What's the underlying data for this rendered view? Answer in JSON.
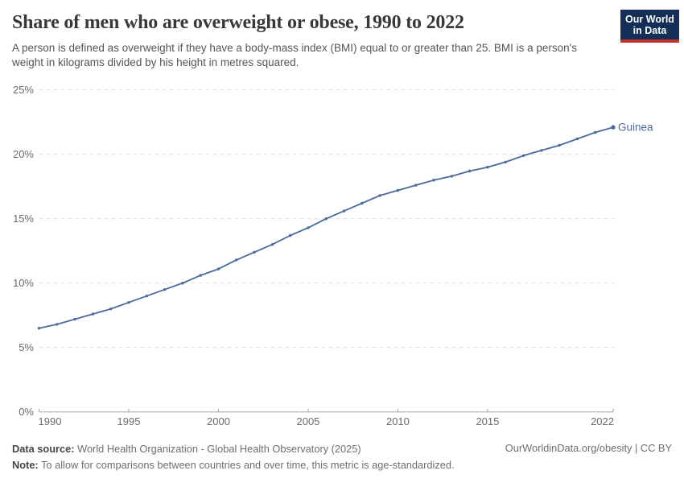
{
  "header": {
    "title": "Share of men who are overweight or obese, 1990 to 2022",
    "subtitle": "A person is defined as overweight if they have a body-mass index (BMI) equal to or greater than 25. BMI is a person's weight in kilograms divided by his height in metres squared.",
    "logo": {
      "line1": "Our World",
      "line2": "in Data",
      "bg_color": "#132e57",
      "accent_color": "#c4302e"
    }
  },
  "chart_data": {
    "type": "line",
    "title": "Share of men who are overweight or obese, 1990 to 2022",
    "xlabel": "",
    "ylabel": "",
    "unit": "%",
    "xlim": [
      1990,
      2022
    ],
    "ylim": [
      0,
      25
    ],
    "grid": "horizontal-dashed",
    "legend_position": "end-of-line-label",
    "xticks": [
      1990,
      1995,
      2000,
      2005,
      2010,
      2015,
      2022
    ],
    "yticks": [
      0,
      5,
      10,
      15,
      20,
      25
    ],
    "ytick_suffix": "%",
    "x": [
      1990,
      1991,
      1992,
      1993,
      1994,
      1995,
      1996,
      1997,
      1998,
      1999,
      2000,
      2001,
      2002,
      2003,
      2004,
      2005,
      2006,
      2007,
      2008,
      2009,
      2010,
      2011,
      2012,
      2013,
      2014,
      2015,
      2016,
      2017,
      2018,
      2019,
      2020,
      2021,
      2022
    ],
    "series": [
      {
        "name": "Guinea",
        "end_label": "Guinea",
        "color": "#4c6a9c",
        "values": [
          6.5,
          6.8,
          7.2,
          7.6,
          8.0,
          8.5,
          9.0,
          9.5,
          10.0,
          10.6,
          11.1,
          11.8,
          12.4,
          13.0,
          13.7,
          14.3,
          15.0,
          15.6,
          16.2,
          16.8,
          17.2,
          17.6,
          18.0,
          18.3,
          18.7,
          19.0,
          19.4,
          19.9,
          20.3,
          20.7,
          21.2,
          21.7,
          22.1
        ]
      }
    ],
    "colors": {
      "gridline": "#dcdcdc",
      "axis": "#a5a5a5",
      "tick_label": "#6b6b6b"
    }
  },
  "footer": {
    "source_label": "Data source:",
    "source_text": "World Health Organization - Global Health Observatory (2025)",
    "note_label": "Note:",
    "note_text": "To allow for comparisons between countries and over time, this metric is age-standardized.",
    "attribution": "OurWorldinData.org/obesity | CC BY"
  }
}
